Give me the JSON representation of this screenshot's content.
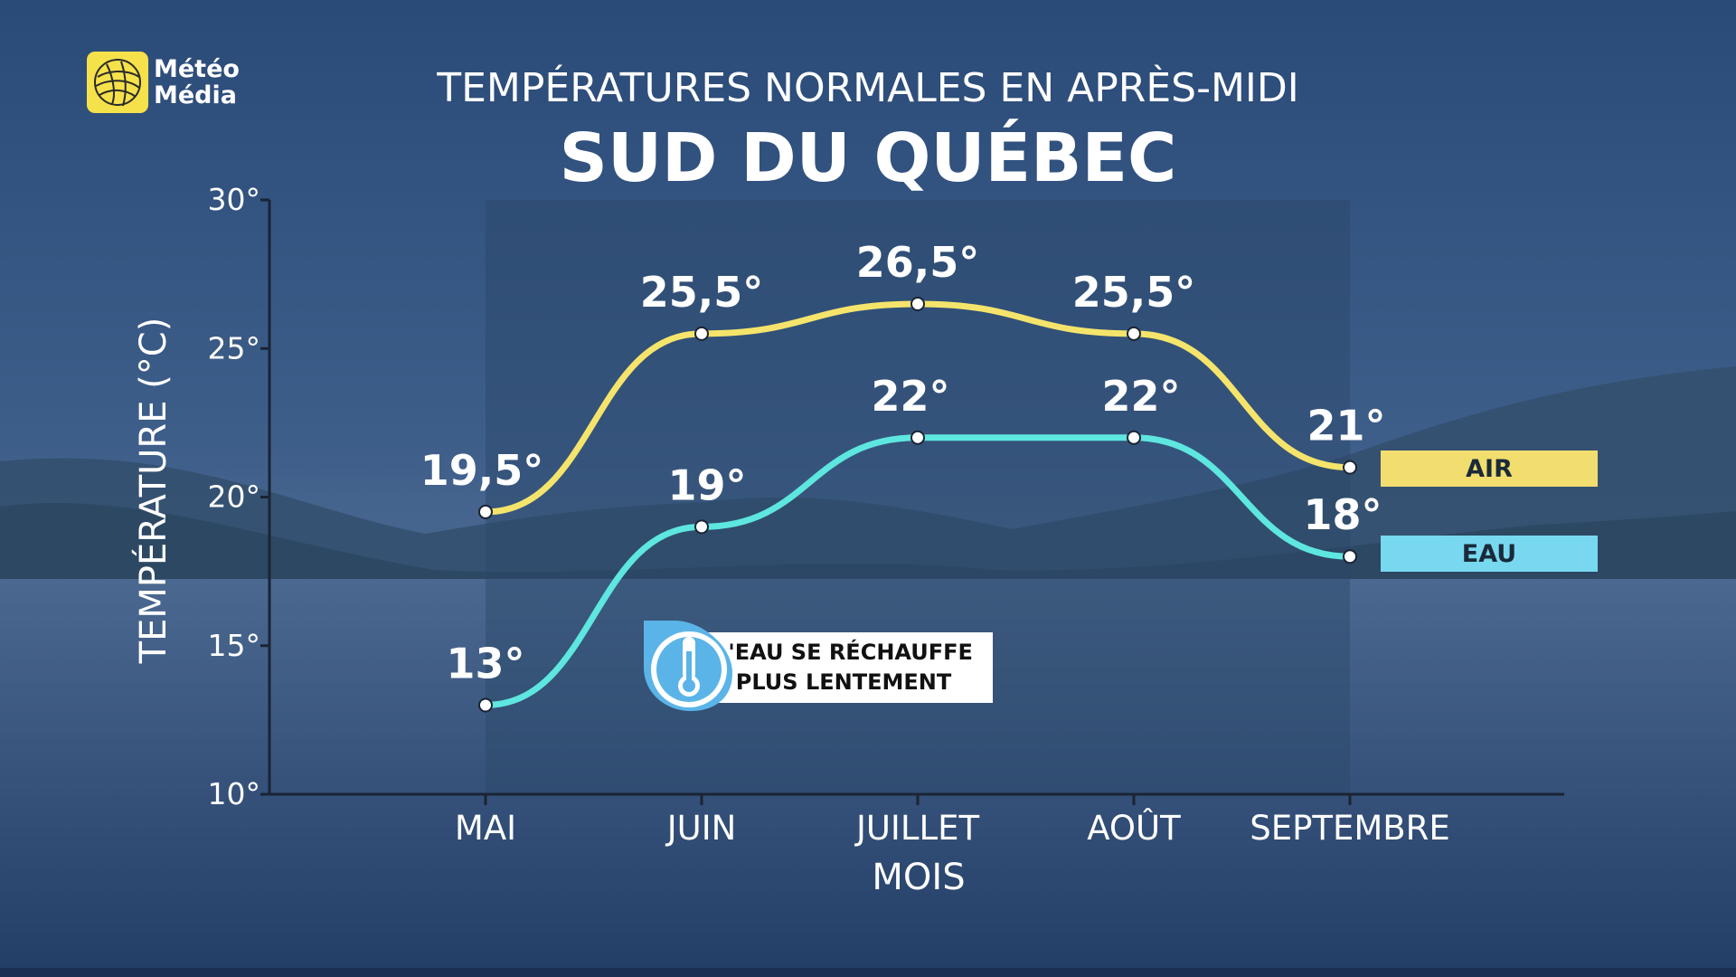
{
  "header": {
    "subtitle": "TEMPÉRATURES NORMALES EN APRÈS-MIDI",
    "title": "SUD DU QUÉBEC"
  },
  "logo": {
    "line1": "Météo",
    "line2": "Média"
  },
  "callout": {
    "line1": "L'EAU SE RÉCHAUFFE",
    "line2": "PLUS LENTEMENT",
    "icon": "thermometer-icon"
  },
  "colors": {
    "air": "#f5e46b",
    "water": "#5ee6e0",
    "legend_air_bg": "#f2de6e",
    "legend_water_bg": "#78d8f0",
    "callout_icon": "#5ab4e8"
  },
  "chart_data": {
    "type": "line",
    "title": "SUD DU QUÉBEC",
    "subtitle": "TEMPÉRATURES NORMALES EN APRÈS-MIDI",
    "xlabel": "MOIS",
    "ylabel": "TEMPÉRATURE (°C)",
    "categories": [
      "MAI",
      "JUIN",
      "JUILLET",
      "AOÛT",
      "SEPTEMBRE"
    ],
    "ylim": [
      10,
      30
    ],
    "yticks": [
      10,
      15,
      20,
      25,
      30
    ],
    "ytick_labels": [
      "10°",
      "15°",
      "20°",
      "25°",
      "30°"
    ],
    "grid": false,
    "legend_position": "right",
    "series": [
      {
        "name": "AIR",
        "values": [
          19.5,
          25.5,
          26.5,
          25.5,
          21
        ],
        "labels": [
          "19,5°",
          "25,5°",
          "26,5°",
          "25,5°",
          "21°"
        ]
      },
      {
        "name": "EAU",
        "values": [
          13,
          19,
          22,
          22,
          18
        ],
        "labels": [
          "13°",
          "19°",
          "22°",
          "22°",
          "18°"
        ]
      }
    ]
  }
}
